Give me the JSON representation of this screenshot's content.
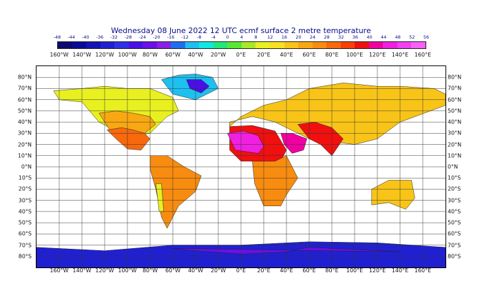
{
  "title": "Wednesday 08 June 2022 12 UTC ecmf surface  2 metre temperature",
  "legend": {
    "labels": [
      "-48",
      "-44",
      "-40",
      "-36",
      "-32",
      "-28",
      "-24",
      "-20",
      "-16",
      "-12",
      "-8",
      "-4",
      "0",
      "4",
      "8",
      "12",
      "16",
      "20",
      "24",
      "28",
      "32",
      "36",
      "40",
      "44",
      "48",
      "52",
      "56"
    ],
    "colors": [
      "#0b0b6e",
      "#0a0a96",
      "#1414b4",
      "#2020d2",
      "#3030e6",
      "#4a10e8",
      "#6a10e8",
      "#8a20e6",
      "#1e6ef0",
      "#1ec0f0",
      "#10e8e0",
      "#22e87a",
      "#58e832",
      "#a8e828",
      "#e8f020",
      "#f8e020",
      "#f8c418",
      "#f8a812",
      "#f88c10",
      "#f8680c",
      "#f84008",
      "#f01010",
      "#f000a0",
      "#f020e0",
      "#f040f0",
      "#f860f8"
    ]
  },
  "axes": {
    "lon_labels": [
      "160°W",
      "140°W",
      "120°W",
      "100°W",
      "80°W",
      "60°W",
      "40°W",
      "20°W",
      "0°E",
      "20°E",
      "40°E",
      "60°E",
      "80°E",
      "100°E",
      "120°E",
      "140°E",
      "160°E"
    ],
    "lat_labels": [
      "80°N",
      "70°N",
      "60°N",
      "50°N",
      "40°N",
      "30°N",
      "20°N",
      "10°N",
      "0°N",
      "10°S",
      "20°S",
      "30°S",
      "40°S",
      "50°S",
      "60°S",
      "70°S",
      "80°S"
    ]
  },
  "chart_data": {
    "type": "heatmap",
    "title": "Wednesday 08 June 2022 12 UTC ecmf surface  2 metre temperature",
    "lon_range": [
      -180,
      180
    ],
    "lat_range": [
      -90,
      90
    ],
    "color_levels": [
      -48,
      -44,
      -40,
      -36,
      -32,
      -28,
      -24,
      -20,
      -16,
      -12,
      -8,
      -4,
      0,
      4,
      8,
      12,
      16,
      20,
      24,
      28,
      32,
      36,
      40,
      44,
      48,
      52,
      56
    ],
    "grid": true,
    "regions": [
      {
        "lon": [
          -165,
          -140,
          -120,
          -100,
          -80,
          -60,
          -55,
          -65,
          -80,
          -95,
          -110,
          -125,
          -140,
          -160
        ],
        "lat": [
          68,
          70,
          72,
          70,
          70,
          62,
          50,
          45,
          30,
          28,
          32,
          40,
          58,
          60
        ],
        "value": 10
      },
      {
        "lon": [
          -125,
          -110,
          -95,
          -80,
          -75,
          -85,
          -100,
          -115
        ],
        "lat": [
          48,
          50,
          48,
          45,
          38,
          30,
          27,
          32
        ],
        "value": 22
      },
      {
        "lon": [
          -118,
          -105,
          -95,
          -85,
          -80,
          -88,
          -100,
          -110
        ],
        "lat": [
          33,
          35,
          33,
          30,
          25,
          15,
          16,
          25
        ],
        "value": 30
      },
      {
        "lon": [
          -80,
          -65,
          -50,
          -35,
          -40,
          -55,
          -65,
          -70,
          -75,
          -80
        ],
        "lat": [
          10,
          10,
          0,
          -8,
          -22,
          -35,
          -55,
          -45,
          -20,
          -2
        ],
        "value": 24
      },
      {
        "lon": [
          -75,
          -70,
          -68,
          -72
        ],
        "lat": [
          -15,
          -15,
          -40,
          -40
        ],
        "value": 8
      },
      {
        "lon": [
          -55,
          -40,
          -25,
          -20,
          -40,
          -60,
          -70
        ],
        "lat": [
          82,
          83,
          80,
          70,
          60,
          65,
          78
        ],
        "value": -12
      },
      {
        "lon": [
          -48,
          -35,
          -28,
          -35,
          -45
        ],
        "lat": [
          78,
          78,
          72,
          66,
          70
        ],
        "value": -28
      },
      {
        "lon": [
          -10,
          10,
          30,
          40,
          30,
          10,
          0,
          -10
        ],
        "lat": [
          36,
          37,
          32,
          15,
          -5,
          5,
          5,
          15
        ],
        "value": 36
      },
      {
        "lon": [
          -12,
          2,
          15,
          20,
          15,
          -5
        ],
        "lat": [
          30,
          32,
          28,
          18,
          12,
          15
        ],
        "value": 44
      },
      {
        "lon": [
          10,
          30,
          40,
          50,
          40,
          35,
          20,
          12
        ],
        "lat": [
          5,
          5,
          10,
          -10,
          -25,
          -35,
          -35,
          -15
        ],
        "value": 26
      },
      {
        "lon": [
          -10,
          0,
          20,
          40,
          60,
          90,
          120,
          140,
          170,
          180,
          180,
          140,
          120,
          100,
          60,
          30,
          10,
          -10
        ],
        "lat": [
          36,
          45,
          55,
          60,
          70,
          75,
          72,
          72,
          70,
          65,
          55,
          40,
          25,
          20,
          25,
          40,
          45,
          40
        ],
        "value": 18
      },
      {
        "lon": [
          35,
          45,
          58,
          55,
          45,
          38
        ],
        "lat": [
          30,
          30,
          25,
          15,
          12,
          20
        ],
        "value": 42
      },
      {
        "lon": [
          50,
          65,
          80,
          90,
          80,
          70,
          60
        ],
        "lat": [
          38,
          40,
          35,
          25,
          10,
          20,
          25
        ],
        "value": 36
      },
      {
        "lon": [
          115,
          130,
          150,
          153,
          145,
          130,
          115
        ],
        "lat": [
          -20,
          -12,
          -12,
          -28,
          -38,
          -32,
          -34
        ],
        "value": 18
      },
      {
        "lon": [
          -180,
          -120,
          -60,
          0,
          60,
          120,
          180,
          180,
          -180
        ],
        "lat": [
          -72,
          -75,
          -70,
          -70,
          -67,
          -68,
          -72,
          -90,
          -90
        ],
        "value": -36
      },
      {
        "lon": [
          -60,
          -40,
          0,
          40,
          60,
          100,
          140
        ],
        "lat": [
          -73,
          -75,
          -78,
          -76,
          -72,
          -74,
          -76
        ],
        "value": -24
      }
    ]
  }
}
